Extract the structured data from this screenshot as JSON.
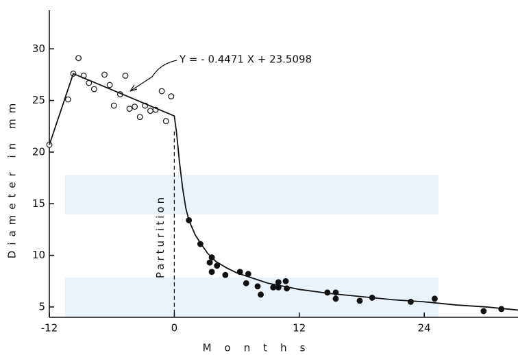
{
  "chart_data": {
    "type": "scatter",
    "ylabel": "Diameter in mm",
    "xlabel": "Months",
    "xlim": [
      -12,
      33
    ],
    "ylim": [
      4,
      34
    ],
    "xticks": [
      -12,
      0,
      12,
      24
    ],
    "yticks": [
      5,
      10,
      15,
      20,
      25,
      30
    ],
    "series": [
      {
        "marker": "open",
        "color": "#222",
        "x": [
          -12,
          -10.2,
          -9.7,
          -9.2,
          -8.7,
          -8.2,
          -7.7,
          -6.7,
          -6.2,
          -5.8,
          -5.2,
          -4.7,
          -4.3,
          -3.8,
          -3.3,
          -2.8,
          -2.3,
          -1.8,
          -1.2,
          -0.8,
          -0.3
        ],
        "values": [
          20.7,
          25.1,
          27.6,
          29.1,
          27.4,
          26.7,
          26.1,
          27.5,
          26.5,
          24.5,
          25.6,
          27.4,
          24.2,
          24.4,
          23.4,
          24.5,
          24.0,
          24.1,
          25.9,
          23.0,
          25.4
        ]
      },
      {
        "marker": "filled",
        "color": "#111",
        "x": [
          1.4,
          2.5,
          3.4,
          3.6,
          3.6,
          4.1,
          4.9,
          6.3,
          7.1,
          6.9,
          8.0,
          8.3,
          9.5,
          10.0,
          10.0,
          10.7,
          10.8,
          14.7,
          15.5,
          15.5,
          17.8,
          19.0,
          22.7,
          25.0,
          29.7,
          31.4
        ],
        "values": [
          13.4,
          11.1,
          9.3,
          9.8,
          8.4,
          9.0,
          8.1,
          8.4,
          8.2,
          7.3,
          7.0,
          6.2,
          6.9,
          7.4,
          6.9,
          7.5,
          6.8,
          6.4,
          6.4,
          5.8,
          5.6,
          5.9,
          5.5,
          5.8,
          4.6,
          4.8
        ]
      },
      {
        "marker": "line",
        "color": "#111",
        "x": [
          -12,
          -9.7,
          0,
          0.2,
          0.5,
          0.8,
          1.1,
          1.4,
          2.0,
          2.5,
          3.2,
          4,
          5,
          6,
          7.5,
          9,
          10.5,
          12,
          15,
          18,
          21,
          24,
          27,
          30,
          33
        ],
        "values": [
          20.7,
          27.6,
          23.5,
          22.0,
          19.0,
          16.5,
          14.6,
          13.4,
          12.0,
          11.2,
          10.2,
          9.4,
          8.8,
          8.3,
          7.8,
          7.3,
          7.0,
          6.7,
          6.3,
          6.0,
          5.7,
          5.5,
          5.2,
          5.0,
          4.7
        ]
      }
    ],
    "annotations": [
      {
        "text": "Parturition",
        "x": 0
      },
      {
        "text": "Y = - 0.4471 X + 23.5098"
      }
    ]
  }
}
